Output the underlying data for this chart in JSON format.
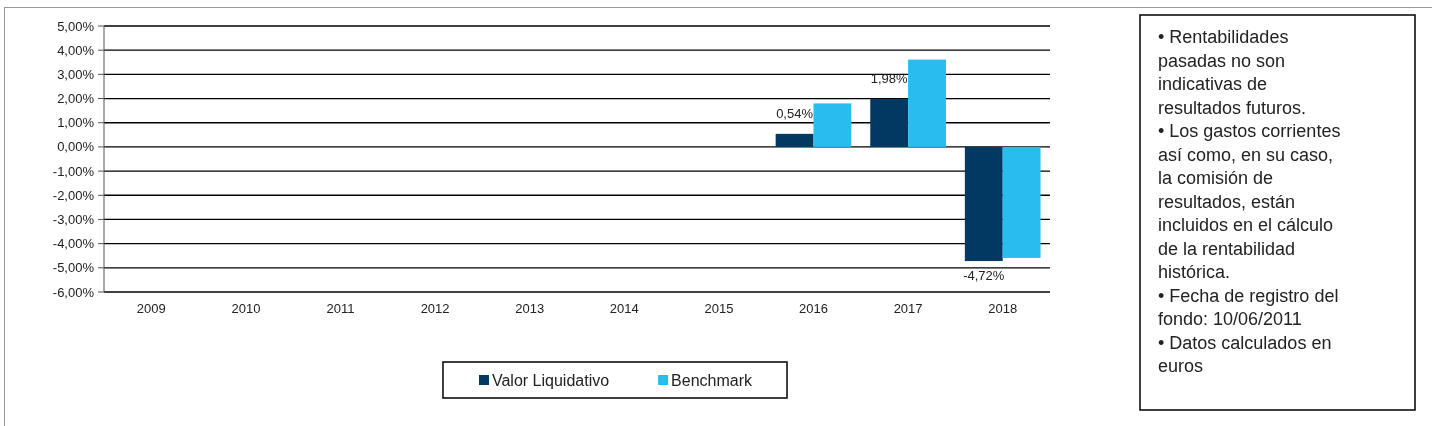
{
  "chart_data": {
    "type": "bar",
    "categories": [
      "2009",
      "2010",
      "2011",
      "2012",
      "2013",
      "2014",
      "2015",
      "2016",
      "2017",
      "2018"
    ],
    "series": [
      {
        "name": "Valor Liquidativo",
        "color": "#003a63",
        "values": [
          null,
          null,
          null,
          null,
          null,
          null,
          null,
          0.54,
          1.98,
          -4.72
        ],
        "value_labels": [
          null,
          null,
          null,
          null,
          null,
          null,
          null,
          "0,54%",
          "1,98%",
          "-4,72%"
        ]
      },
      {
        "name": "Benchmark",
        "color": "#29bdef",
        "values": [
          null,
          null,
          null,
          null,
          null,
          null,
          null,
          1.8,
          3.61,
          -4.59
        ]
      }
    ],
    "ylim": [
      -6,
      5
    ],
    "yticks": [
      {
        "value": -6,
        "label": "-6,00%"
      },
      {
        "value": -5,
        "label": "-5,00%"
      },
      {
        "value": -4,
        "label": "-4,00%"
      },
      {
        "value": -3,
        "label": "-3,00%"
      },
      {
        "value": -2,
        "label": "-2,00%"
      },
      {
        "value": -1,
        "label": "-1,00%"
      },
      {
        "value": 0,
        "label": "0,00%"
      },
      {
        "value": 1,
        "label": "1,00%"
      },
      {
        "value": 2,
        "label": "2,00%"
      },
      {
        "value": 3,
        "label": "3,00%"
      },
      {
        "value": 4,
        "label": "4,00%"
      },
      {
        "value": 5,
        "label": "5,00%"
      }
    ],
    "grid": "y",
    "legend": "bottom",
    "annotations": [
      "• Rentabilidades pasadas no son indicativas de resultados futuros.",
      "• Los gastos corrientes así como, en su caso, la comisión de resultados, están incluidos en el cálculo de la rentabilidad histórica.",
      "• Fecha de registro del fondo: 10/06/2011",
      "• Datos calculados en euros"
    ]
  }
}
